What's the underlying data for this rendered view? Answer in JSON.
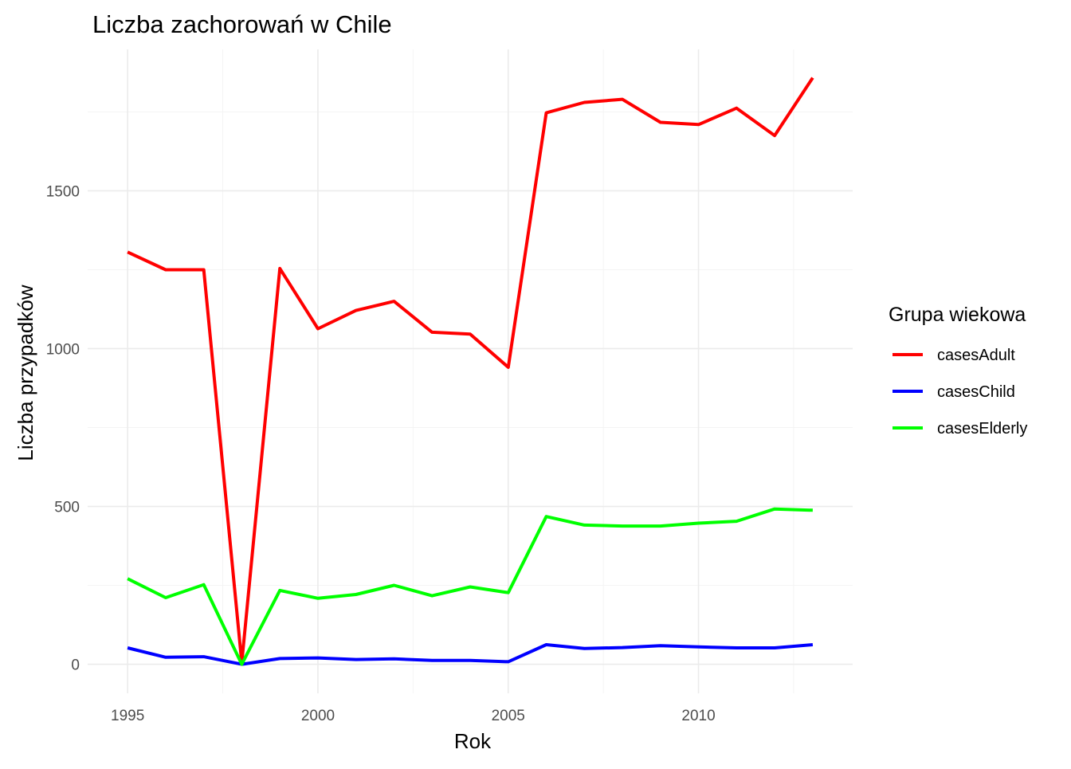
{
  "chart_data": {
    "type": "line",
    "title": "Liczba zachorowań w Chile",
    "xlabel": "Rok",
    "ylabel": "Liczba przypadków",
    "x": [
      1995,
      1996,
      1997,
      1998,
      1999,
      2000,
      2001,
      2002,
      2003,
      2004,
      2005,
      2006,
      2007,
      2008,
      2009,
      2010,
      2011,
      2012,
      2013
    ],
    "xlim": [
      1993.95,
      2014.05
    ],
    "ylim": [
      -92,
      1948
    ],
    "x_ticks": [
      "1995",
      "2000",
      "2005",
      "2010"
    ],
    "x_tick_values": [
      1995,
      2000,
      2005,
      2010
    ],
    "y_ticks": [
      "0",
      "500",
      "1000",
      "1500"
    ],
    "y_tick_values": [
      0,
      500,
      1000,
      1500
    ],
    "grid": true,
    "legend": {
      "title": "Grupa wiekowa",
      "position": "right"
    },
    "series": [
      {
        "name": "casesAdult",
        "color": "#FF0000",
        "values": [
          1306,
          1250,
          1250,
          5,
          1254,
          1063,
          1121,
          1150,
          1052,
          1046,
          941,
          1747,
          1780,
          1790,
          1717,
          1710,
          1762,
          1675,
          1858
        ]
      },
      {
        "name": "casesChild",
        "color": "#0000FF",
        "values": [
          52,
          22,
          24,
          0,
          18,
          20,
          15,
          17,
          12,
          12,
          8,
          62,
          50,
          53,
          59,
          55,
          52,
          52,
          62
        ]
      },
      {
        "name": "casesElderly",
        "color": "#00FF00",
        "values": [
          271,
          211,
          252,
          0,
          234,
          209,
          221,
          250,
          217,
          245,
          227,
          468,
          441,
          438,
          438,
          447,
          453,
          492,
          488
        ]
      }
    ]
  }
}
